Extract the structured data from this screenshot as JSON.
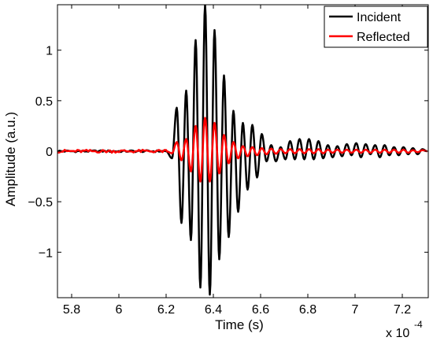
{
  "chart_data": {
    "type": "line",
    "title": "",
    "xlabel": "Time (s)",
    "ylabel": "Amplitude (a.u.)",
    "x_multiplier_label": "x 10",
    "x_multiplier_exponent": "-4",
    "xlim": [
      5.74,
      7.31
    ],
    "ylim": [
      -1.45,
      1.45
    ],
    "x_ticks": [
      5.8,
      6,
      6.2,
      6.4,
      6.6,
      6.8,
      7,
      7.2
    ],
    "x_tick_labels": [
      "5.8",
      "6",
      "6.2",
      "6.4",
      "6.6",
      "6.8",
      "7",
      "7.2"
    ],
    "y_ticks": [
      -1,
      -0.5,
      0,
      0.5,
      1
    ],
    "y_tick_labels": [
      "−1",
      "−0.5",
      "0",
      "0.5",
      "1"
    ],
    "grid": false,
    "legend_position": "top-right",
    "series": [
      {
        "name": "Incident",
        "color": "#000000",
        "extrema_x": [
          6.2,
          6.225,
          6.245,
          6.265,
          6.285,
          6.305,
          6.325,
          6.345,
          6.365,
          6.385,
          6.405,
          6.425,
          6.445,
          6.465,
          6.485,
          6.505,
          6.525,
          6.545,
          6.565,
          6.585,
          6.605,
          6.625,
          6.645,
          6.665,
          6.685,
          6.705,
          6.725,
          6.745,
          6.765,
          6.785,
          6.805,
          6.825,
          6.845,
          6.865,
          6.885,
          6.905,
          6.925,
          6.945,
          6.965,
          6.985,
          7.005,
          7.025,
          7.045,
          7.065,
          7.085,
          7.105,
          7.125,
          7.145,
          7.165,
          7.185,
          7.205,
          7.225,
          7.245,
          7.265,
          7.285,
          7.305
        ],
        "extrema_y": [
          0,
          -0.07,
          0.43,
          -0.71,
          0.6,
          -0.88,
          1.1,
          -1.35,
          1.45,
          -1.42,
          1.2,
          -1.07,
          0.75,
          -0.85,
          0.4,
          -0.6,
          0.28,
          -0.38,
          0.26,
          -0.26,
          0.17,
          -0.1,
          0.06,
          -0.1,
          0.04,
          -0.08,
          0.1,
          -0.08,
          0.12,
          -0.08,
          0.12,
          -0.08,
          0.1,
          -0.07,
          0.06,
          -0.06,
          0.05,
          -0.05,
          0.07,
          -0.04,
          0.08,
          -0.06,
          0.07,
          -0.03,
          0.06,
          -0.06,
          0.06,
          -0.04,
          0.04,
          -0.04,
          0.04,
          -0.03,
          0.03,
          -0.03,
          0.02,
          0.0
        ]
      },
      {
        "name": "Reflected",
        "color": "#ff0000",
        "extrema_x": [
          6.2,
          6.225,
          6.245,
          6.265,
          6.285,
          6.305,
          6.325,
          6.345,
          6.365,
          6.385,
          6.405,
          6.425,
          6.445,
          6.465,
          6.485,
          6.505,
          6.525,
          6.545,
          6.565,
          6.585,
          6.605,
          6.625,
          6.645,
          6.665,
          6.685,
          6.705,
          6.725,
          6.745,
          6.765,
          6.785,
          6.805,
          6.825,
          6.845,
          6.865,
          6.885,
          6.905,
          6.925,
          6.945,
          6.965,
          6.985,
          7.005,
          7.025,
          7.045,
          7.065,
          7.085,
          7.105,
          7.125,
          7.145,
          7.165,
          7.185,
          7.205,
          7.225,
          7.245,
          7.265,
          7.285,
          7.305
        ],
        "extrema_y": [
          0,
          -0.02,
          0.09,
          -0.09,
          0.12,
          -0.2,
          0.25,
          -0.3,
          0.33,
          -0.3,
          0.28,
          -0.22,
          0.16,
          -0.12,
          0.09,
          -0.07,
          0.05,
          -0.05,
          0.04,
          -0.04,
          0.03,
          -0.03,
          0.025,
          -0.025,
          0.02,
          -0.02,
          0.02,
          -0.02,
          0.02,
          -0.02,
          0.02,
          -0.02,
          0.02,
          -0.02,
          0.015,
          -0.015,
          0.015,
          -0.015,
          0.015,
          -0.015,
          0.015,
          -0.015,
          0.015,
          -0.015,
          0.015,
          -0.015,
          0.015,
          -0.015,
          0.015,
          -0.015,
          0.015,
          -0.015,
          0.01,
          -0.01,
          0.01,
          0.0
        ]
      }
    ]
  }
}
